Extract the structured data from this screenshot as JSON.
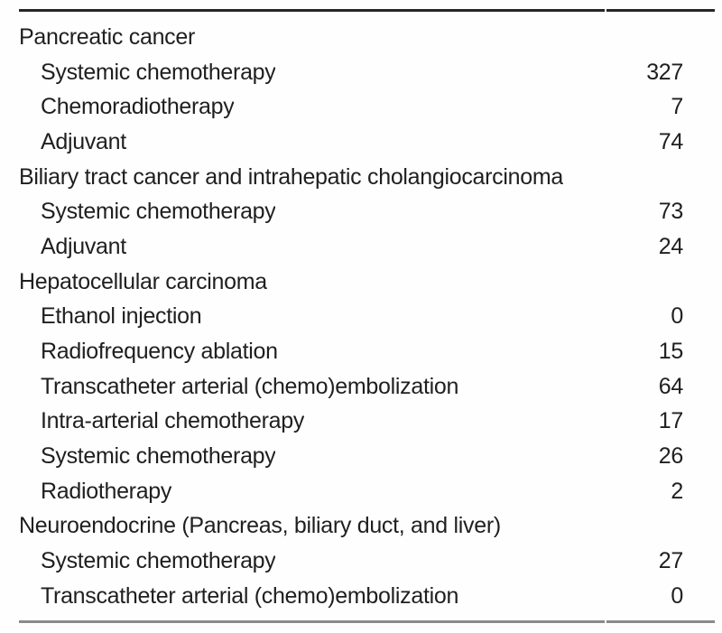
{
  "colors": {
    "text": "#1f1f1f",
    "top_rule": "#262626",
    "bottom_rule": "#8a8a8a",
    "background": "#fefefe"
  },
  "table": {
    "rows": [
      {
        "type": "category",
        "label": "Pancreatic cancer",
        "value": ""
      },
      {
        "type": "item",
        "label": "Systemic chemotherapy",
        "value": "327"
      },
      {
        "type": "item",
        "label": "Chemoradiotherapy",
        "value": "7"
      },
      {
        "type": "item",
        "label": "Adjuvant",
        "value": "74"
      },
      {
        "type": "category",
        "label": "Biliary tract cancer and intrahepatic cholangiocarcinoma",
        "value": ""
      },
      {
        "type": "item",
        "label": "Systemic chemotherapy",
        "value": "73"
      },
      {
        "type": "item",
        "label": "Adjuvant",
        "value": "24"
      },
      {
        "type": "category",
        "label": "Hepatocellular carcinoma",
        "value": ""
      },
      {
        "type": "item",
        "label": "Ethanol injection",
        "value": "0"
      },
      {
        "type": "item",
        "label": "Radiofrequency ablation",
        "value": "15"
      },
      {
        "type": "item",
        "label": "Transcatheter arterial (chemo)embolization",
        "value": "64"
      },
      {
        "type": "item",
        "label": "Intra-arterial chemotherapy",
        "value": "17"
      },
      {
        "type": "item",
        "label": "Systemic chemotherapy",
        "value": "26"
      },
      {
        "type": "item",
        "label": "Radiotherapy",
        "value": "2"
      },
      {
        "type": "category",
        "label": "Neuroendocrine (Pancreas, biliary duct, and liver)",
        "value": ""
      },
      {
        "type": "item",
        "label": "Systemic chemotherapy",
        "value": "27"
      },
      {
        "type": "item",
        "label": "Transcatheter arterial (chemo)embolization",
        "value": "0"
      }
    ]
  }
}
